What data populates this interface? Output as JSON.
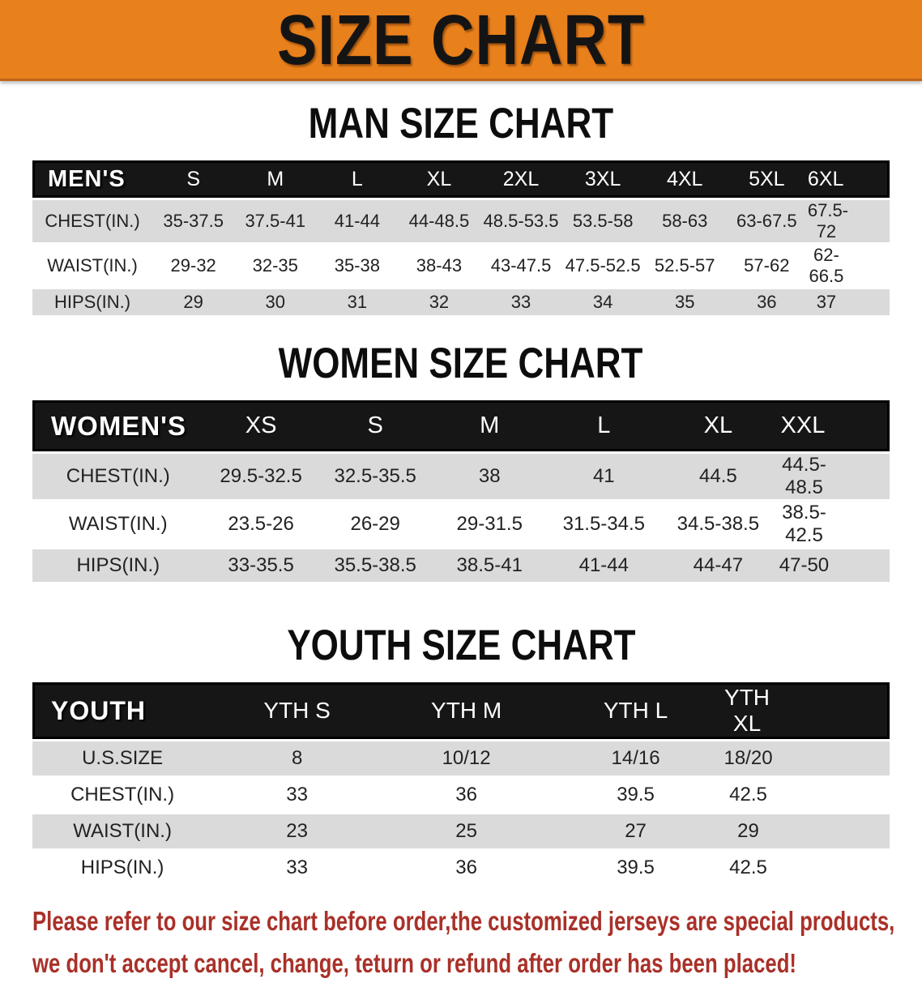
{
  "banner": {
    "title": "SIZE CHART"
  },
  "sections": {
    "men": {
      "title": "MAN SIZE CHART",
      "table": {
        "header": [
          "MEN'S",
          "S",
          "M",
          "L",
          "XL",
          "2XL",
          "3XL",
          "4XL",
          "5XL",
          "6XL"
        ],
        "rows": [
          [
            "CHEST(IN.)",
            "35-37.5",
            "37.5-41",
            "41-44",
            "44-48.5",
            "48.5-53.5",
            "53.5-58",
            "58-63",
            "63-67.5",
            "67.5-72"
          ],
          [
            "WAIST(IN.)",
            "29-32",
            "32-35",
            "35-38",
            "38-43",
            "43-47.5",
            "47.5-52.5",
            "52.5-57",
            "57-62",
            "62-66.5"
          ],
          [
            "HIPS(IN.)",
            "29",
            "30",
            "31",
            "32",
            "33",
            "34",
            "35",
            "36",
            "37"
          ]
        ]
      }
    },
    "women": {
      "title": "WOMEN SIZE CHART",
      "table": {
        "header": [
          "WOMEN'S",
          "XS",
          "S",
          "M",
          "L",
          "XL",
          "XXL"
        ],
        "rows": [
          [
            "CHEST(IN.)",
            "29.5-32.5",
            "32.5-35.5",
            "38",
            "41",
            "44.5",
            "44.5-48.5"
          ],
          [
            "WAIST(IN.)",
            "23.5-26",
            "26-29",
            "29-31.5",
            "31.5-34.5",
            "34.5-38.5",
            "38.5-42.5"
          ],
          [
            "HIPS(IN.)",
            "33-35.5",
            "35.5-38.5",
            "38.5-41",
            "41-44",
            "44-47",
            "47-50"
          ]
        ]
      }
    },
    "youth": {
      "title": "YOUTH SIZE CHART",
      "table": {
        "header": [
          "YOUTH",
          "YTH S",
          "YTH M",
          "YTH L",
          "YTH XL"
        ],
        "rows": [
          [
            "U.S.SIZE",
            "8",
            "10/12",
            "14/16",
            "18/20"
          ],
          [
            "CHEST(IN.)",
            "33",
            "36",
            "39.5",
            "42.5"
          ],
          [
            "WAIST(IN.)",
            "23",
            "25",
            "27",
            "29"
          ],
          [
            "HIPS(IN.)",
            "33",
            "36",
            "39.5",
            "42.5"
          ]
        ]
      }
    }
  },
  "footer": {
    "line1": "Please refer to our size chart before order,the customized jerseys are special products,",
    "line2": "we don't accept cancel, change, teturn or refund after order has been placed!"
  },
  "colors": {
    "banner_bg": "#e8801b",
    "banner_text": "#141414",
    "header_bar_bg": "#161616",
    "header_bar_text": "#ffffff",
    "stripe_gray": "#dadada",
    "disclaimer_red": "#a93129"
  }
}
